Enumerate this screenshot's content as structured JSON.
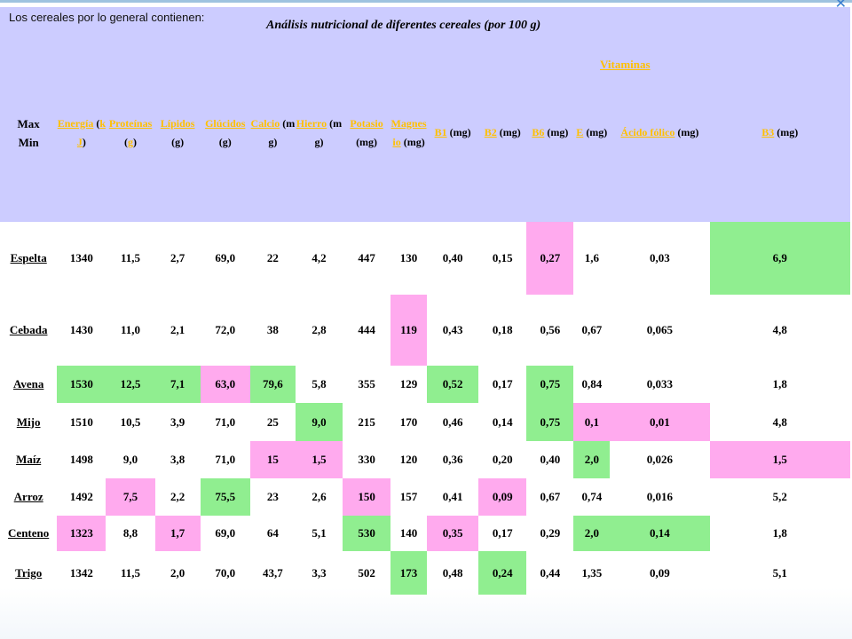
{
  "intro": "Los cereales por lo general contienen:",
  "caption": "Análisis nutricional de diferentes cereales (por 100 g)",
  "vitaminas_label": "Vitaminas",
  "max_label": "Max",
  "min_label": "Min",
  "columns": [
    {
      "link": "Energía",
      "unit_link": "kJ"
    },
    {
      "link": "Proteínas",
      "unit_link": "g"
    },
    {
      "link": "Lípidos",
      "unit": "(g)"
    },
    {
      "link": "Glúcidos",
      "unit": "(g)"
    },
    {
      "link": "Calcio",
      "unit": "(mg)"
    },
    {
      "link": "Hierro",
      "unit": "(mg)"
    },
    {
      "link": "Potasio",
      "unit": "(mg)"
    },
    {
      "link": "Magnesio",
      "unit": "(mg)"
    },
    {
      "link": "B1",
      "unit": "(mg)"
    },
    {
      "link": "B2",
      "unit": "(mg)"
    },
    {
      "link": "B6",
      "unit": "(mg)"
    },
    {
      "link": "E",
      "unit": "(mg)"
    },
    {
      "link": "Ácido fólico",
      "unit": "(mg)"
    },
    {
      "link": "B3",
      "unit": "(mg)"
    }
  ],
  "highlight_colors": {
    "max": "#90ee90",
    "min": "#ffaaee"
  },
  "rows": [
    {
      "name": "Espelta",
      "values": [
        "1340",
        "11,5",
        "2,7",
        "69,0",
        "22",
        "4,2",
        "447",
        "130",
        "0,40",
        "0,15",
        "0,27",
        "1,6",
        "0,03",
        "6,9"
      ],
      "highlight": [
        "",
        "",
        "",
        "",
        "",
        "",
        "",
        "",
        "",
        "",
        "p",
        "",
        "",
        "g"
      ]
    },
    {
      "name": "Cebada",
      "values": [
        "1430",
        "11,0",
        "2,1",
        "72,0",
        "38",
        "2,8",
        "444",
        "119",
        "0,43",
        "0,18",
        "0,56",
        "0,67",
        "0,065",
        "4,8"
      ],
      "highlight": [
        "",
        "",
        "",
        "",
        "",
        "",
        "",
        "p",
        "",
        "",
        "",
        "",
        "",
        ""
      ]
    },
    {
      "name": "Avena",
      "values": [
        "1530",
        "12,5",
        "7,1",
        "63,0",
        "79,6",
        "5,8",
        "355",
        "129",
        "0,52",
        "0,17",
        "0,75",
        "0,84",
        "0,033",
        "1,8"
      ],
      "highlight": [
        "g",
        "g",
        "g",
        "p",
        "g",
        "",
        "",
        "",
        "g",
        "",
        "g",
        "",
        "",
        ""
      ]
    },
    {
      "name": "Mijo",
      "values": [
        "1510",
        "10,5",
        "3,9",
        "71,0",
        "25",
        "9,0",
        "215",
        "170",
        "0,46",
        "0,14",
        "0,75",
        "0,1",
        "0,01",
        "4,8"
      ],
      "highlight": [
        "",
        "",
        "",
        "",
        "",
        "g",
        "",
        "",
        "",
        "",
        "g",
        "p",
        "p",
        ""
      ]
    },
    {
      "name": "Maíz",
      "values": [
        "1498",
        "9,0",
        "3,8",
        "71,0",
        "15",
        "1,5",
        "330",
        "120",
        "0,36",
        "0,20",
        "0,40",
        "2,0",
        "0,026",
        "1,5"
      ],
      "highlight": [
        "",
        "",
        "",
        "",
        "p",
        "p",
        "",
        "",
        "",
        "",
        "",
        "g",
        "",
        "p"
      ]
    },
    {
      "name": "Arroz",
      "values": [
        "1492",
        "7,5",
        "2,2",
        "75,5",
        "23",
        "2,6",
        "150",
        "157",
        "0,41",
        "0,09",
        "0,67",
        "0,74",
        "0,016",
        "5,2"
      ],
      "highlight": [
        "",
        "p",
        "",
        "g",
        "",
        "",
        "p",
        "",
        "",
        "p",
        "",
        "",
        "",
        ""
      ]
    },
    {
      "name": "Centeno",
      "values": [
        "1323",
        "8,8",
        "1,7",
        "69,0",
        "64",
        "5,1",
        "530",
        "140",
        "0,35",
        "0,17",
        "0,29",
        "2,0",
        "0,14",
        "1,8"
      ],
      "highlight": [
        "p",
        "",
        "p",
        "",
        "",
        "",
        "g",
        "",
        "p",
        "",
        "",
        "g",
        "g",
        ""
      ]
    },
    {
      "name": "Trigo",
      "values": [
        "1342",
        "11,5",
        "2,0",
        "70,0",
        "43,7",
        "3,3",
        "502",
        "173",
        "0,48",
        "0,24",
        "0,44",
        "1,35",
        "0,09",
        "5,1"
      ],
      "highlight": [
        "",
        "",
        "",
        "",
        "",
        "",
        "",
        "g",
        "",
        "g",
        "",
        "",
        "",
        ""
      ]
    }
  ]
}
